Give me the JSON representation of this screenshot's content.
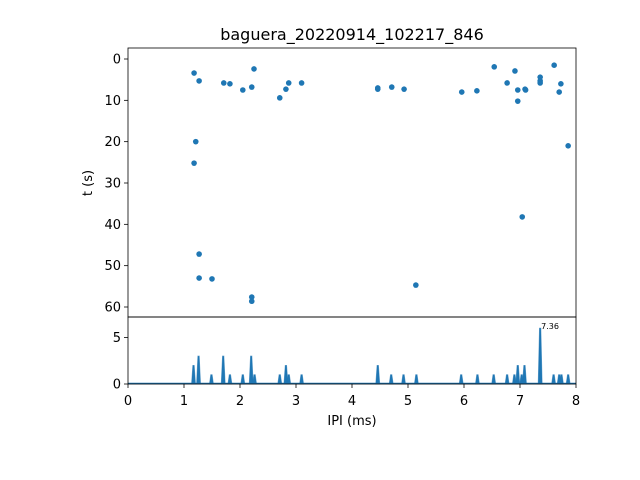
{
  "chart_data": [
    {
      "type": "scatter",
      "title": "baguera_20220914_102217_846",
      "xlabel": "",
      "ylabel": "t (s)",
      "xlim": [
        0,
        8
      ],
      "ylim": [
        62.5,
        -2.8
      ],
      "y_inverted": true,
      "yticks": [
        "0",
        "10",
        "20",
        "30",
        "40",
        "50",
        "60"
      ],
      "color": "#1f77b4",
      "points": [
        [
          1.18,
          3.4
        ],
        [
          1.27,
          5.3
        ],
        [
          1.71,
          5.8
        ],
        [
          1.82,
          6.0
        ],
        [
          2.05,
          7.5
        ],
        [
          2.21,
          6.8
        ],
        [
          2.25,
          2.4
        ],
        [
          2.71,
          9.4
        ],
        [
          2.82,
          7.3
        ],
        [
          2.87,
          5.8
        ],
        [
          3.1,
          5.8
        ],
        [
          4.46,
          7.3
        ],
        [
          4.46,
          7.0
        ],
        [
          4.71,
          6.8
        ],
        [
          4.93,
          7.3
        ],
        [
          5.96,
          8.0
        ],
        [
          6.23,
          7.7
        ],
        [
          6.54,
          1.9
        ],
        [
          6.77,
          5.8
        ],
        [
          6.91,
          2.9
        ],
        [
          6.96,
          7.5
        ],
        [
          6.96,
          10.2
        ],
        [
          7.09,
          7.3
        ],
        [
          7.1,
          7.5
        ],
        [
          7.36,
          4.4
        ],
        [
          7.36,
          5.3
        ],
        [
          7.36,
          5.8
        ],
        [
          7.61,
          1.5
        ],
        [
          7.7,
          8.0
        ],
        [
          7.73,
          6.0
        ],
        [
          7.86,
          21.0
        ],
        [
          7.04,
          38.2
        ],
        [
          1.21,
          20.0
        ],
        [
          1.18,
          25.2
        ],
        [
          1.27,
          47.2
        ],
        [
          1.27,
          53.0
        ],
        [
          1.5,
          53.2
        ],
        [
          5.14,
          54.7
        ],
        [
          2.21,
          57.6
        ],
        [
          2.21,
          58.6
        ]
      ]
    },
    {
      "type": "area",
      "xlabel": "IPI (ms)",
      "ylabel": "",
      "xlim": [
        0,
        8
      ],
      "ylim": [
        0,
        7.2
      ],
      "xticks": [
        "0",
        "1",
        "2",
        "3",
        "4",
        "5",
        "6",
        "7",
        "8"
      ],
      "yticks": [
        "0",
        "5"
      ],
      "annotation": "7.36",
      "color": "#1f77b4",
      "peaks": [
        [
          1.17,
          2
        ],
        [
          1.26,
          3
        ],
        [
          1.49,
          1
        ],
        [
          1.7,
          3
        ],
        [
          1.82,
          1
        ],
        [
          2.05,
          1
        ],
        [
          2.2,
          3
        ],
        [
          2.26,
          1
        ],
        [
          2.71,
          1
        ],
        [
          2.82,
          2
        ],
        [
          2.87,
          1
        ],
        [
          3.1,
          1
        ],
        [
          4.46,
          2
        ],
        [
          4.7,
          1
        ],
        [
          4.92,
          1
        ],
        [
          5.15,
          1
        ],
        [
          5.95,
          1
        ],
        [
          6.24,
          1
        ],
        [
          6.53,
          1
        ],
        [
          6.77,
          1
        ],
        [
          6.9,
          1
        ],
        [
          6.96,
          2
        ],
        [
          7.03,
          1
        ],
        [
          7.08,
          2
        ],
        [
          7.36,
          6
        ],
        [
          7.6,
          1
        ],
        [
          7.7,
          1
        ],
        [
          7.74,
          1
        ],
        [
          7.86,
          1
        ]
      ]
    }
  ]
}
